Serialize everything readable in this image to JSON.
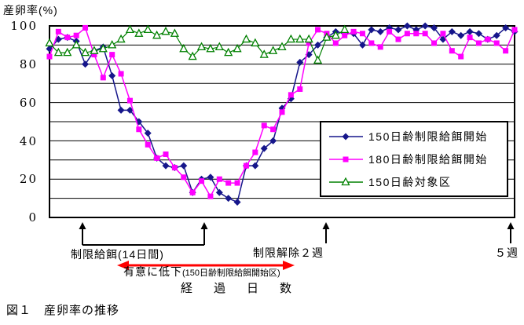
{
  "caption": "図１　産卵率の推移",
  "colors": {
    "series_150_restricted": "#16168b",
    "series_180_restricted": "#ff00ff",
    "series_150_control": "#008000",
    "grid": "#000000",
    "black_arrow": "#000000",
    "red_arrow": "#ff0000",
    "background": "#ffffff"
  },
  "annotations": {
    "restriction_period": "制限給餌(14日間)",
    "release_2weeks": "制限解除２週",
    "week5": "５週",
    "significant_drop": "有意に低下",
    "significant_drop_note": "(150日齢制限給餌開始区)"
  },
  "chart_data": {
    "type": "line",
    "title": "図１　産卵率の推移",
    "ylabel": "産卵率(%)",
    "xlabel": "経　過　日　数",
    "ylim": [
      0,
      100
    ],
    "y_tick_labels": [
      "100",
      "80",
      "60",
      "40",
      "20",
      "0"
    ],
    "gridline_interval": 10,
    "grid": "horizontal-only",
    "legend_position": "boxed, middle-right inside plot",
    "x_axis_note": "no numeric x tick labels shown; annotated with arrows",
    "series": [
      {
        "name": "150日齢制限給餌開始",
        "marker": "diamond",
        "color": "#16168b",
        "values": [
          88,
          93,
          94,
          92,
          80,
          87,
          89,
          74,
          56,
          56,
          50,
          44,
          31,
          27,
          26,
          27,
          13,
          20,
          21,
          13,
          10,
          8,
          27,
          27,
          36,
          40,
          57,
          62,
          81,
          85,
          90,
          94,
          97,
          96,
          96,
          90,
          98,
          97,
          99,
          98,
          100,
          98,
          100,
          99,
          93,
          97,
          95,
          97,
          96,
          93,
          95,
          99,
          97
        ]
      },
      {
        "name": "180日齢制限給餌開始",
        "marker": "square",
        "color": "#ff00ff",
        "values": [
          84,
          97,
          94,
          95,
          99,
          85,
          73,
          85,
          75,
          61,
          46,
          38,
          31,
          33,
          26,
          21,
          13,
          19,
          11,
          20,
          18,
          18,
          27,
          34,
          48,
          46,
          55,
          64,
          67,
          91,
          98,
          96,
          91,
          95,
          97,
          96,
          91,
          89,
          97,
          93,
          96,
          96,
          96,
          91,
          96,
          87,
          84,
          94,
          91,
          93,
          91,
          87,
          98
        ]
      },
      {
        "name": "150日齢対象区",
        "marker": "triangle-open",
        "color": "#008000",
        "values": [
          91,
          86,
          86,
          90,
          86,
          87,
          88,
          90,
          93,
          98,
          96,
          98,
          95,
          97,
          96,
          88,
          84,
          89,
          88,
          89,
          86,
          88,
          93,
          91,
          85,
          87,
          89,
          93,
          93,
          93,
          82,
          94,
          95,
          98
        ]
      }
    ]
  }
}
